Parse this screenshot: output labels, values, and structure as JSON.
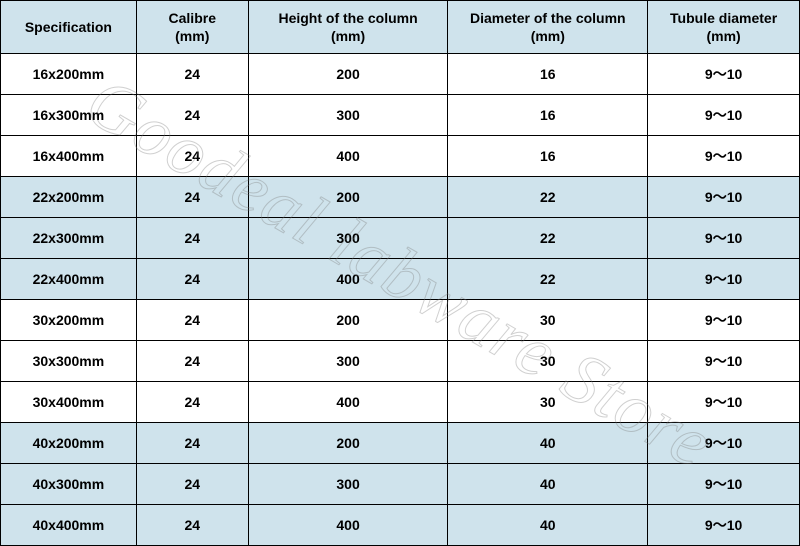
{
  "table": {
    "header_bg": "#cfe3ec",
    "row_bg_white": "#ffffff",
    "row_bg_tint": "#cfe3ec",
    "border_color": "#000000",
    "text_color": "#000000",
    "font_size_header": 14,
    "font_size_cell": 14,
    "font_weight": "bold",
    "columns": [
      {
        "label_line1": "Specification",
        "label_line2": "",
        "width_pct": 17
      },
      {
        "label_line1": "Calibre",
        "label_line2": "(mm)",
        "width_pct": 14
      },
      {
        "label_line1": "Height of the column",
        "label_line2": "(mm)",
        "width_pct": 25
      },
      {
        "label_line1": "Diameter of the column",
        "label_line2": "(mm)",
        "width_pct": 25
      },
      {
        "label_line1": "Tubule diameter",
        "label_line2": "(mm)",
        "width_pct": 19
      }
    ],
    "row_tints": [
      false,
      false,
      false,
      true,
      true,
      true,
      false,
      false,
      false,
      true,
      true,
      true
    ],
    "rows": [
      [
        "16x200mm",
        "24",
        "200",
        "16",
        "9～10"
      ],
      [
        "16x300mm",
        "24",
        "300",
        "16",
        "9～10"
      ],
      [
        "16x400mm",
        "24",
        "400",
        "16",
        "9～10"
      ],
      [
        "22x200mm",
        "24",
        "200",
        "22",
        "9～10"
      ],
      [
        "22x300mm",
        "24",
        "300",
        "22",
        "9～10"
      ],
      [
        "22x400mm",
        "24",
        "400",
        "22",
        "9～10"
      ],
      [
        "30x200mm",
        "24",
        "200",
        "30",
        "9～10"
      ],
      [
        "30x300mm",
        "24",
        "300",
        "30",
        "9～10"
      ],
      [
        "30x400mm",
        "24",
        "400",
        "30",
        "9～10"
      ],
      [
        "40x200mm",
        "24",
        "200",
        "40",
        "9～10"
      ],
      [
        "40x300mm",
        "24",
        "300",
        "40",
        "9～10"
      ],
      [
        "40x400mm",
        "24",
        "400",
        "40",
        "9～10"
      ]
    ]
  },
  "watermark": {
    "text": "Goodeal labware Store",
    "rotation_deg": 30,
    "font_family": "Times New Roman",
    "font_style": "italic",
    "font_size": 72,
    "stroke_color": "rgba(120,120,120,0.35)",
    "fill_color": "transparent"
  }
}
